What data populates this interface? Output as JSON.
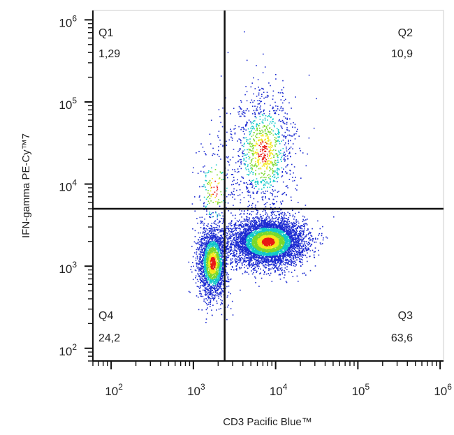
{
  "chart_data": {
    "type": "scatter",
    "title": "",
    "xlabel": "CD3 Pacific Blue™",
    "ylabel": "IFN-gamma PE-Cy™7",
    "x_scale": "log",
    "y_scale": "log",
    "xlim": [
      60,
      1100000
    ],
    "ylim": [
      70,
      1300000
    ],
    "x_ticks": [
      {
        "value": 100,
        "base": "10",
        "exp": "2"
      },
      {
        "value": 1000,
        "base": "10",
        "exp": "3"
      },
      {
        "value": 10000,
        "base": "10",
        "exp": "4"
      },
      {
        "value": 100000,
        "base": "10",
        "exp": "5"
      },
      {
        "value": 1000000,
        "base": "10",
        "exp": "6"
      }
    ],
    "y_ticks": [
      {
        "value": 100,
        "base": "10",
        "exp": "2"
      },
      {
        "value": 1000,
        "base": "10",
        "exp": "3"
      },
      {
        "value": 10000,
        "base": "10",
        "exp": "4"
      },
      {
        "value": 100000,
        "base": "10",
        "exp": "5"
      },
      {
        "value": 1000000,
        "base": "10",
        "exp": "6"
      }
    ],
    "gates": {
      "x": 2400,
      "y": 5000
    },
    "quadrants": [
      {
        "name": "Q1",
        "value": "1,29",
        "corner": "top-left"
      },
      {
        "name": "Q2",
        "value": "10,9",
        "corner": "top-right"
      },
      {
        "name": "Q3",
        "value": "63,6",
        "corner": "bottom-right"
      },
      {
        "name": "Q4",
        "value": "24,2",
        "corner": "bottom-left"
      }
    ],
    "populations": [
      {
        "center_x": 8000,
        "center_y": 2000,
        "spread_x": 0.22,
        "spread_y": 0.14,
        "share": 0.62
      },
      {
        "center_x": 1700,
        "center_y": 1100,
        "spread_x": 0.09,
        "spread_y": 0.22,
        "share": 0.24
      },
      {
        "center_x": 7000,
        "center_y": 25000,
        "spread_x": 0.2,
        "spread_y": 0.38,
        "share": 0.12
      },
      {
        "center_x": 1800,
        "center_y": 9000,
        "spread_x": 0.12,
        "spread_y": 0.3,
        "share": 0.02
      }
    ],
    "colors": {
      "density_low": "#1c2bd1",
      "density_mid": "#12c9c9",
      "density_midhigh": "#7ad92b",
      "density_high": "#f2e81a",
      "density_peak": "#e81a14",
      "gate_line": "#111111"
    },
    "grid": false,
    "legend": "none"
  }
}
